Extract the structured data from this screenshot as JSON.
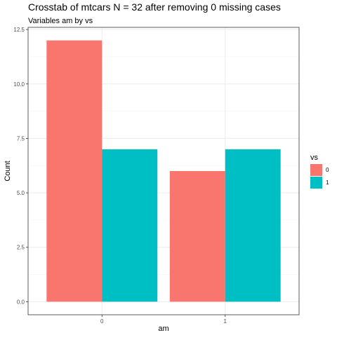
{
  "chart_data": {
    "type": "bar",
    "title": "Crosstab of mtcars N = 32 after removing 0 missing cases",
    "subtitle": "Variables am by vs",
    "xlabel": "am",
    "ylabel": "Count",
    "categories": [
      "0",
      "1"
    ],
    "series": [
      {
        "name": "0",
        "values": [
          12,
          6
        ]
      },
      {
        "name": "1",
        "values": [
          7,
          7
        ]
      }
    ],
    "ylim": [
      -0.6,
      12.6
    ],
    "yticks": [
      0.0,
      2.5,
      5.0,
      7.5,
      10.0,
      12.5
    ],
    "ytick_labels": [
      "0.0",
      "2.5",
      "5.0",
      "7.5",
      "10.0",
      "12.5"
    ],
    "grid": true,
    "legend": {
      "title": "vs",
      "position": "right"
    },
    "colors": {
      "0": "#F8766D",
      "1": "#00BFC4",
      "grid_major": "#EBEBEB",
      "grid_minor": "#F5F5F5",
      "panel_border": "#333333"
    }
  }
}
